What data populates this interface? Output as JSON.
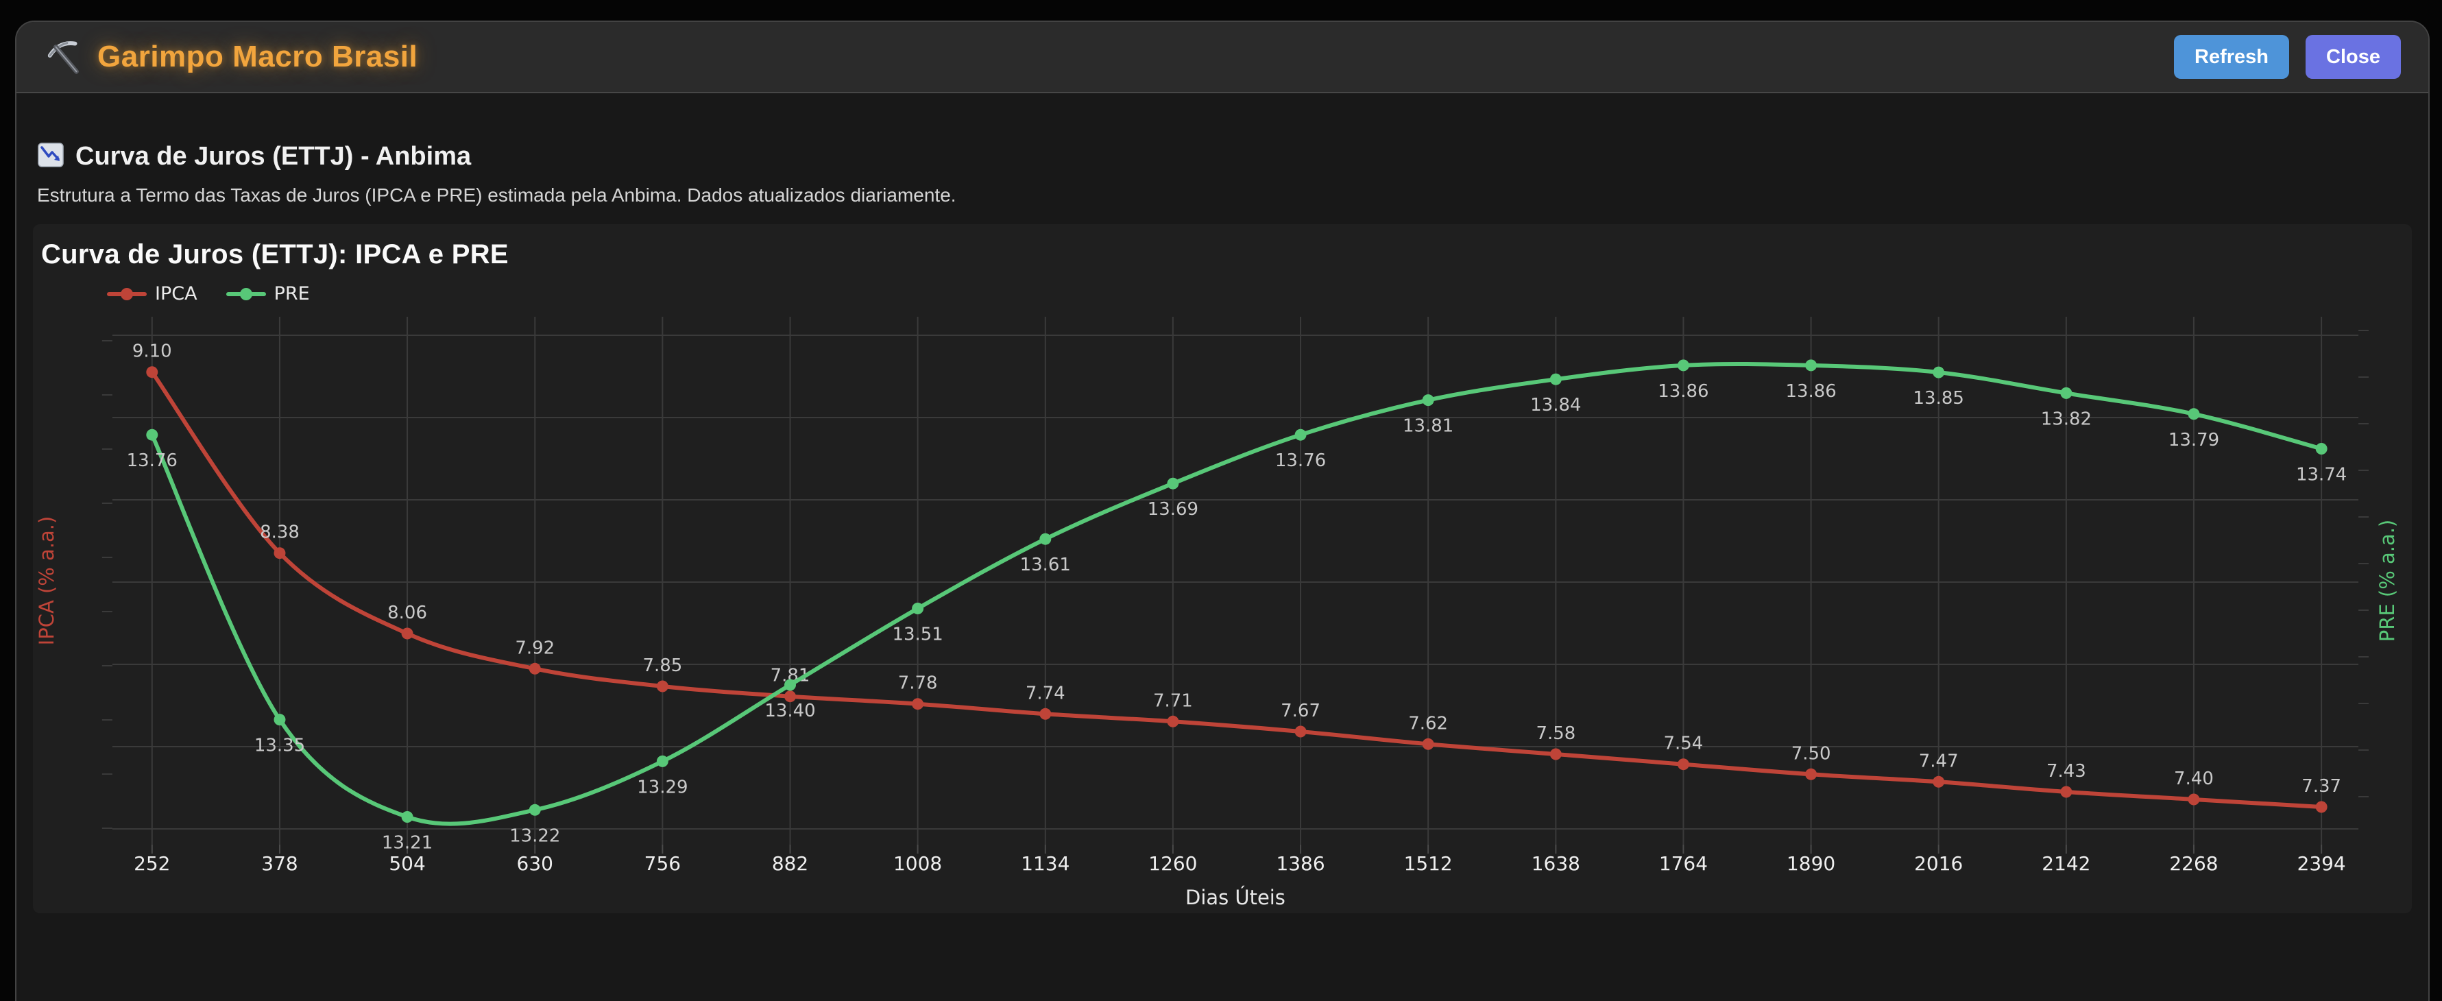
{
  "header": {
    "logo_icon": "pickaxe-icon",
    "title": "Garimpo Macro Brasil",
    "refresh_label": "Refresh",
    "close_label": "Close"
  },
  "section": {
    "icon": "chart-decreasing-icon",
    "title": "Curva de Juros (ETTJ) - Anbima",
    "subtitle": "Estrutura a Termo das Taxas de Juros (IPCA e PRE) estimada pela Anbima. Dados atualizados diariamente."
  },
  "chart_data": {
    "type": "line",
    "title": "Curva de Juros (ETTJ): IPCA e PRE",
    "xlabel": "Dias Úteis",
    "x": [
      252,
      378,
      504,
      630,
      756,
      882,
      1008,
      1134,
      1260,
      1386,
      1512,
      1638,
      1764,
      1890,
      2016,
      2142,
      2268,
      2394
    ],
    "series": [
      {
        "name": "IPCA",
        "color": "#bf4438",
        "axis": "left",
        "axis_label": "IPCA (% a.a.)",
        "label_position": "above",
        "values": [
          9.1,
          8.38,
          8.06,
          7.92,
          7.85,
          7.81,
          7.78,
          7.74,
          7.71,
          7.67,
          7.62,
          7.58,
          7.54,
          7.5,
          7.47,
          7.43,
          7.4,
          7.37
        ]
      },
      {
        "name": "PRE",
        "color": "#58c878",
        "axis": "right",
        "axis_label": "PRE (% a.a.)",
        "label_position": "below",
        "values": [
          13.76,
          13.35,
          13.21,
          13.22,
          13.29,
          13.4,
          13.51,
          13.61,
          13.69,
          13.76,
          13.81,
          13.84,
          13.86,
          13.86,
          13.85,
          13.82,
          13.79,
          13.74
        ]
      }
    ],
    "left_axis_range": [
      7.22,
      9.32
    ],
    "right_axis_range": [
      13.17,
      13.93
    ],
    "grid": true,
    "legend_position": "top-left",
    "markers": true,
    "data_labels": true
  },
  "colors": {
    "page_bg": "#050505",
    "card_bg": "#181818",
    "header_bg": "#2b2b2b",
    "panel_bg": "#1f1f1f",
    "gridline": "#3a3a3a",
    "accent_orange": "#f2a53d",
    "refresh_blue": "#4e94d9",
    "close_purple": "#6a72e2",
    "ipca_red": "#bf4438",
    "pre_green": "#58c878",
    "tick_text": "#efefef",
    "label_text": "#c9c9c9"
  }
}
